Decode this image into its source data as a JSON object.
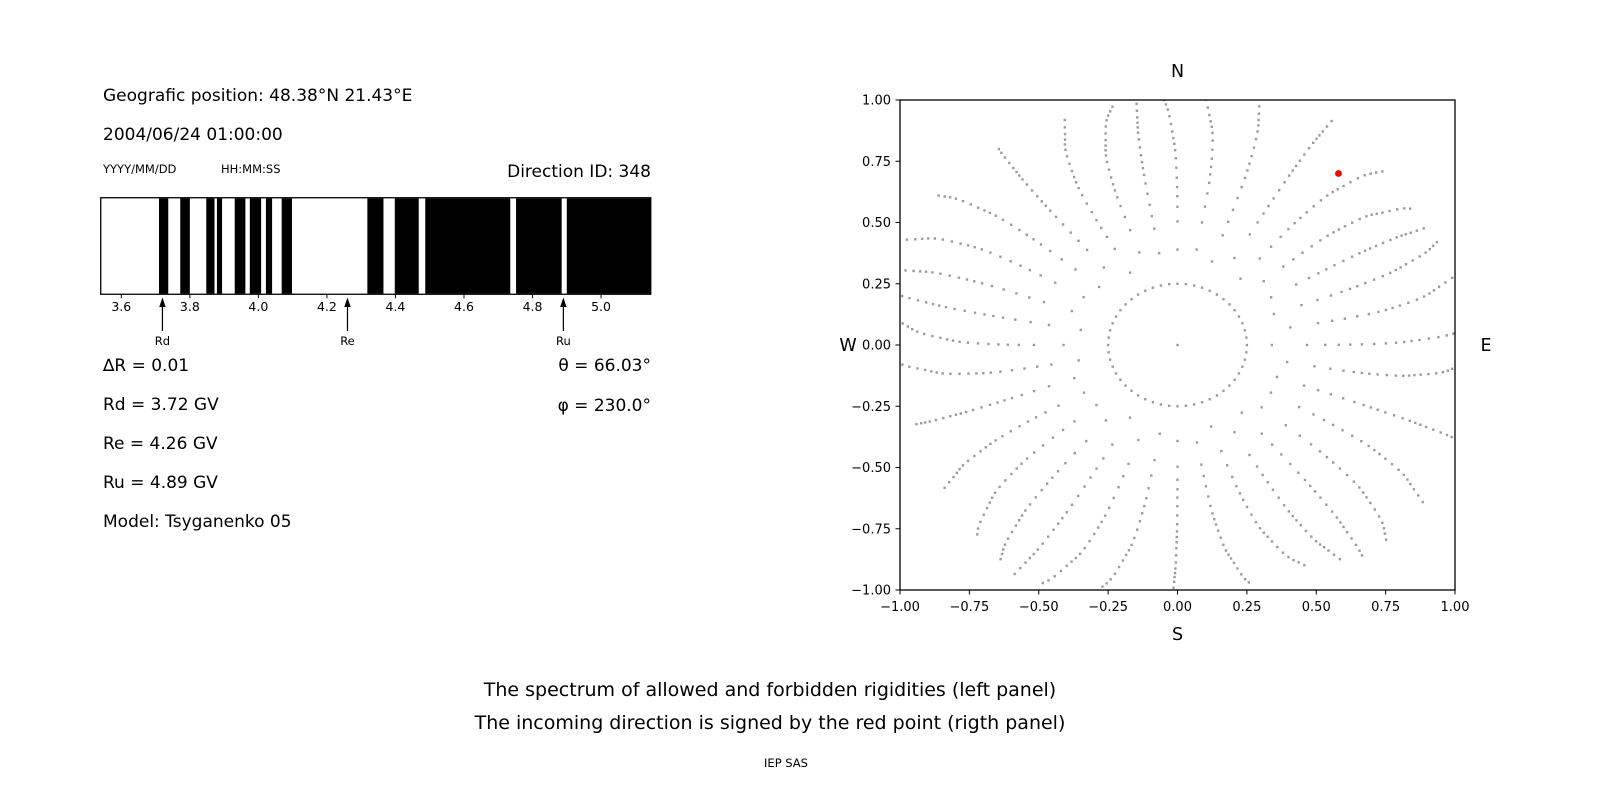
{
  "header": {
    "position": "Geografic position: 48.38°N 21.43°E",
    "datetime": "2004/06/24 01:00:00",
    "date_format": "YYYY/MM/DD",
    "time_format": "HH:MM:SS",
    "direction_id": "Direction ID: 348"
  },
  "values": {
    "delta_r": "∆R = 0.01",
    "rd": "Rd = 3.72 GV",
    "re": "Re = 4.26 GV",
    "ru": "Ru = 4.89 GV",
    "model": "Model: Tsyganenko 05",
    "theta": "θ = 66.03°",
    "phi": "φ = 230.0°"
  },
  "caption": {
    "line1": "The spectrum of allowed and forbidden rigidities (left panel)",
    "line2": "The incoming direction is signed by the red point (rigth panel)",
    "credit": "IEP SAS"
  },
  "chart_data": [
    {
      "type": "bar",
      "title": "Spectrum of allowed (white) and forbidden (black) rigidities",
      "xlabel": "",
      "ylabel": "",
      "xlim": [
        3.54,
        5.145
      ],
      "xticks": [
        3.6,
        3.8,
        4.0,
        4.2,
        4.4,
        4.6,
        4.8,
        5.0
      ],
      "bar_color": "#000000",
      "forbidden_intervals_gv": [
        [
          3.71,
          3.737
        ],
        [
          3.772,
          3.8
        ],
        [
          3.848,
          3.872
        ],
        [
          3.879,
          3.894
        ],
        [
          3.931,
          3.962
        ],
        [
          3.975,
          4.008
        ],
        [
          4.022,
          4.04
        ],
        [
          4.068,
          4.098
        ],
        [
          4.318,
          4.365
        ],
        [
          4.398,
          4.468
        ],
        [
          4.487,
          4.735
        ],
        [
          4.752,
          4.885
        ],
        [
          4.9,
          5.145
        ]
      ],
      "markers": [
        {
          "label": "Rd",
          "value_gv": 3.72
        },
        {
          "label": "Re",
          "value_gv": 4.26
        },
        {
          "label": "Ru",
          "value_gv": 4.89
        }
      ]
    },
    {
      "type": "scatter",
      "compass": {
        "top": "N",
        "bottom": "S",
        "left": "W",
        "right": "E"
      },
      "xlim": [
        -1.0,
        1.0
      ],
      "ylim": [
        -1.0,
        1.0
      ],
      "ticks": [
        -1.0,
        -0.75,
        -0.5,
        -0.25,
        0.0,
        0.25,
        0.5,
        0.75,
        1.0
      ],
      "grid": false,
      "dot_color": "#8f8f8f",
      "red_point": {
        "x": 0.58,
        "y": 0.7,
        "color": "#ff0000"
      },
      "center_dot": {
        "x": 0,
        "y": 0
      },
      "inner_ring": {
        "radius": 0.25,
        "dots": 52
      },
      "rays": {
        "count": 36,
        "angle_step_deg": 10,
        "r_start": 0.34,
        "r_end": 1.05,
        "dots_per_ray": 20,
        "curvature_deg": 7
      }
    }
  ]
}
